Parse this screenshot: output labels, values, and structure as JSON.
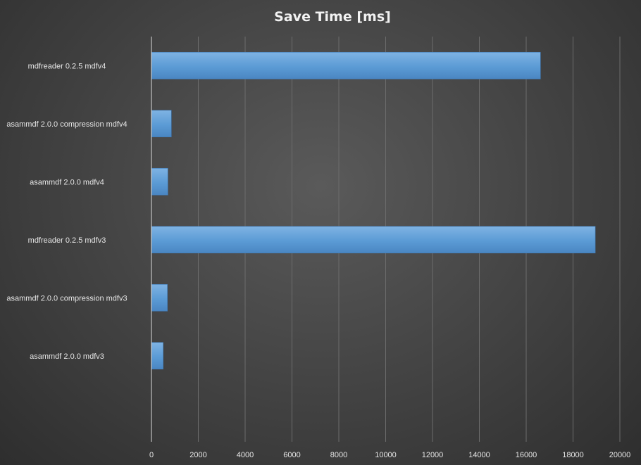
{
  "chart_data": {
    "type": "bar",
    "orientation": "horizontal",
    "title": "Save Time [ms]",
    "categories": [
      "mdfreader 0.2.5 mdfv4",
      "asammdf 2.0.0 compression mdfv4",
      "asammdf 2.0.0 mdfv4",
      "mdfreader 0.2.5 mdfv3",
      "asammdf 2.0.0 compression mdfv3",
      "asammdf 2.0.0 mdfv3"
    ],
    "values": [
      16610,
      850,
      700,
      18950,
      680,
      500
    ],
    "xlim": [
      0,
      20000
    ],
    "xticks": [
      "0",
      "2000",
      "4000",
      "6000",
      "8000",
      "10000",
      "12000",
      "14000",
      "16000",
      "18000",
      "20000"
    ],
    "grid": true,
    "legend": "none",
    "bar_color": "#5b9bd5"
  }
}
